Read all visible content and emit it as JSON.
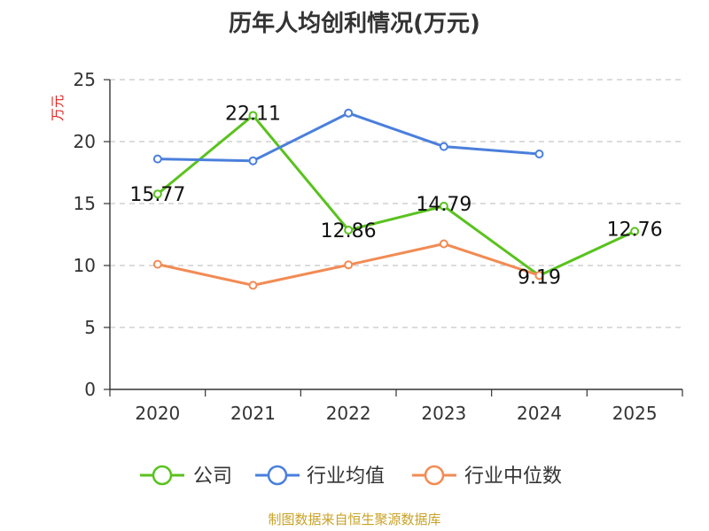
{
  "title": "历年人均创利情况(万元)",
  "source": "制图数据来自恒生聚源数据库",
  "chart_data": {
    "type": "line",
    "ylabel": "万元",
    "ylim": [
      0,
      25
    ],
    "yticks": [
      0,
      5,
      10,
      15,
      20,
      25
    ],
    "categories": [
      "2020",
      "2021",
      "2022",
      "2023",
      "2024",
      "2025"
    ],
    "grid": true,
    "legend_position": "bottom",
    "series": [
      {
        "name": "公司",
        "color": "#5ac21e",
        "values": [
          15.77,
          22.11,
          12.86,
          14.79,
          9.19,
          12.76
        ],
        "labels": [
          "15.77",
          "22.11",
          "12.86",
          "14.79",
          "9.19",
          "12.76"
        ]
      },
      {
        "name": "行业均值",
        "color": "#4a7fdc",
        "values": [
          18.6,
          18.45,
          22.3,
          19.6,
          19.0,
          null
        ]
      },
      {
        "name": "行业中位数",
        "color": "#f28b54",
        "values": [
          10.1,
          8.4,
          10.05,
          11.75,
          9.2,
          null
        ]
      }
    ]
  }
}
